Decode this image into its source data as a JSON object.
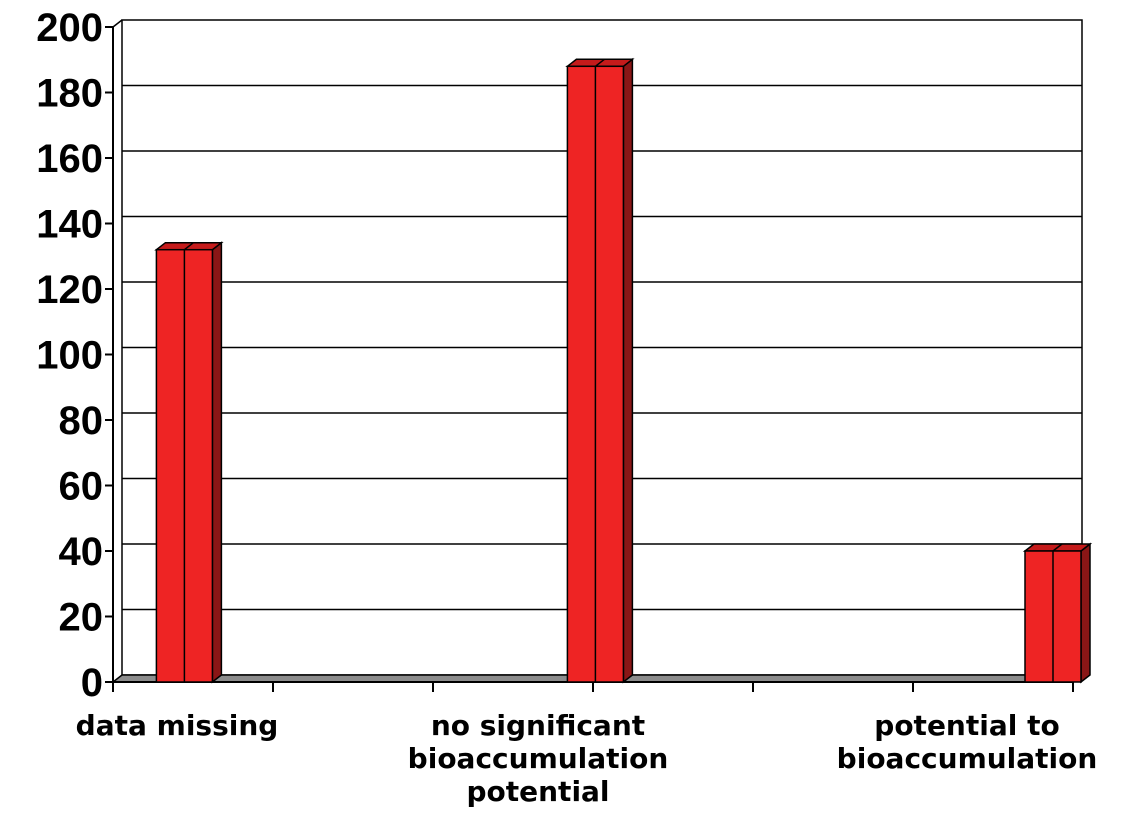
{
  "chart_data": {
    "type": "bar",
    "categories": [
      [
        "data missing"
      ],
      [
        "no significant",
        "bioaccumulation",
        "potential"
      ],
      [
        "potential to",
        "bioaccumulation"
      ]
    ],
    "values": [
      132,
      188,
      40
    ],
    "ylim": [
      0,
      200
    ],
    "yticks": [
      "0",
      "20",
      "40",
      "60",
      "80",
      "100",
      "120",
      "140",
      "160",
      "180",
      "200"
    ],
    "grid": true,
    "bar_style": "3d",
    "colors": {
      "bar_front": "#ee2424",
      "bar_top": "#c51b1b",
      "bar_side": "#8a1616",
      "floor": "#8c8c8c",
      "grid": "#000000"
    }
  }
}
